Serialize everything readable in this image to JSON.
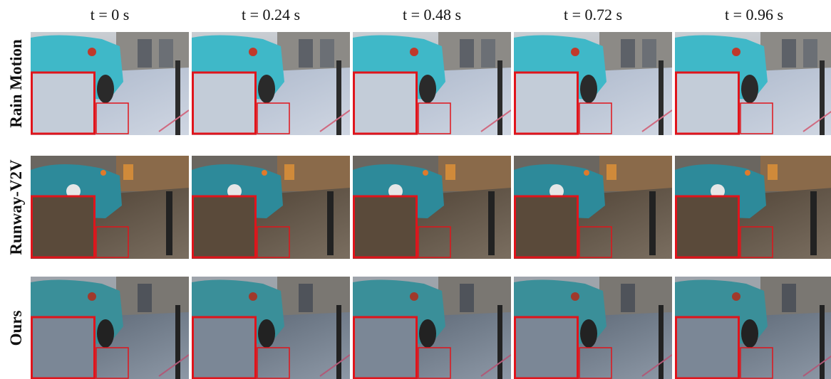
{
  "figure": {
    "columns": [
      "t = 0 s",
      "t = 0.24 s",
      "t = 0.48 s",
      "t = 0.72 s",
      "t = 0.96 s"
    ],
    "rows": [
      "Rain Motion",
      "Runway-V2V",
      "Ours"
    ]
  }
}
